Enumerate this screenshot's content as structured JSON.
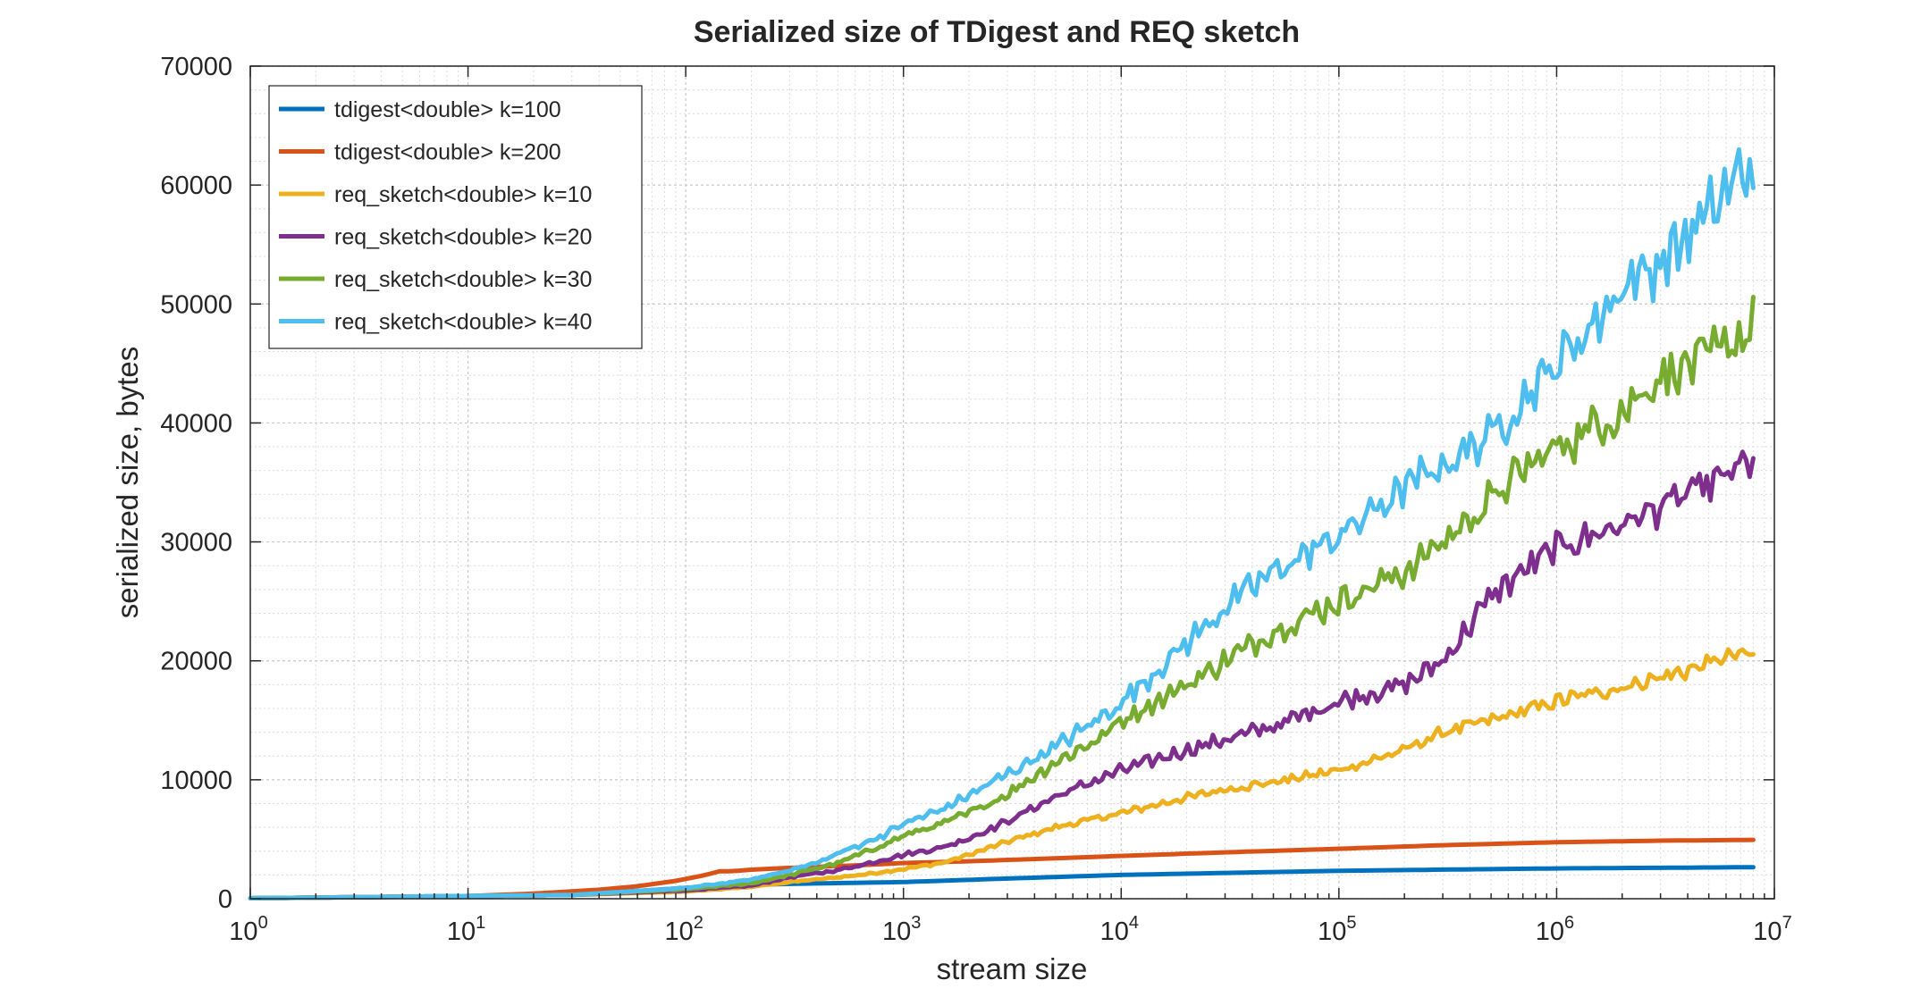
{
  "chart_data": {
    "type": "line",
    "title": "Serialized size of TDigest and REQ sketch",
    "xlabel": "stream size",
    "ylabel": "serialized size, bytes",
    "xscale": "log",
    "xlim": [
      1,
      10000000
    ],
    "ylim": [
      0,
      70000
    ],
    "grid": true,
    "legend_position": "top-left",
    "x_ticks": [
      {
        "value": 1,
        "base": "10",
        "exp": "0"
      },
      {
        "value": 10,
        "base": "10",
        "exp": "1"
      },
      {
        "value": 100,
        "base": "10",
        "exp": "2"
      },
      {
        "value": 1000,
        "base": "10",
        "exp": "3"
      },
      {
        "value": 10000,
        "base": "10",
        "exp": "4"
      },
      {
        "value": 100000,
        "base": "10",
        "exp": "5"
      },
      {
        "value": 1000000,
        "base": "10",
        "exp": "6"
      },
      {
        "value": 10000000,
        "base": "10",
        "exp": "7"
      }
    ],
    "y_ticks": [
      {
        "value": 0,
        "label": "0"
      },
      {
        "value": 10000,
        "label": "10000"
      },
      {
        "value": 20000,
        "label": "20000"
      },
      {
        "value": 30000,
        "label": "30000"
      },
      {
        "value": 40000,
        "label": "40000"
      },
      {
        "value": 50000,
        "label": "50000"
      },
      {
        "value": 60000,
        "label": "60000"
      },
      {
        "value": 70000,
        "label": "70000"
      }
    ],
    "series": [
      {
        "name": "tdigest<double> k=100",
        "color": "#0072bd",
        "points": [
          [
            1,
            40
          ],
          [
            10,
            200
          ],
          [
            30,
            420
          ],
          [
            60,
            650
          ],
          [
            100,
            920
          ],
          [
            150,
            1100
          ],
          [
            300,
            1250
          ],
          [
            1000,
            1400
          ],
          [
            3000,
            1700
          ],
          [
            10000,
            2000
          ],
          [
            100000,
            2350
          ],
          [
            1000000,
            2550
          ],
          [
            8000000,
            2650
          ]
        ]
      },
      {
        "name": "tdigest<double> k=200",
        "color": "#d95319",
        "points": [
          [
            1,
            40
          ],
          [
            10,
            220
          ],
          [
            20,
            430
          ],
          [
            40,
            760
          ],
          [
            60,
            1050
          ],
          [
            90,
            1500
          ],
          [
            120,
            1950
          ],
          [
            150,
            2400
          ],
          [
            160,
            2300
          ],
          [
            200,
            2450
          ],
          [
            300,
            2600
          ],
          [
            600,
            2800
          ],
          [
            1000,
            3000
          ],
          [
            2000,
            3150
          ],
          [
            5000,
            3400
          ],
          [
            10000,
            3600
          ],
          [
            30000,
            3900
          ],
          [
            100000,
            4200
          ],
          [
            300000,
            4500
          ],
          [
            1000000,
            4750
          ],
          [
            3000000,
            4880
          ],
          [
            8000000,
            4950
          ]
        ]
      },
      {
        "name": "req_sketch<double> k=10",
        "color": "#edb120",
        "wiggle": 0.05,
        "points": [
          [
            1,
            40
          ],
          [
            30,
            320
          ],
          [
            100,
            600
          ],
          [
            200,
            1000
          ],
          [
            300,
            1400
          ],
          [
            500,
            1800
          ],
          [
            700,
            2100
          ],
          [
            1000,
            2500
          ],
          [
            1500,
            3000
          ],
          [
            2000,
            3700
          ],
          [
            3000,
            4800
          ],
          [
            5000,
            6000
          ],
          [
            10000,
            7200
          ],
          [
            20000,
            8500
          ],
          [
            30000,
            9200
          ],
          [
            50000,
            9800
          ],
          [
            100000,
            10800
          ],
          [
            200000,
            12500
          ],
          [
            300000,
            14000
          ],
          [
            500000,
            15000
          ],
          [
            1000000,
            16600
          ],
          [
            2000000,
            17800
          ],
          [
            4000000,
            19200
          ],
          [
            6000000,
            20300
          ],
          [
            8000000,
            20600
          ]
        ]
      },
      {
        "name": "req_sketch<double> k=20",
        "color": "#7e2f8e",
        "wiggle": 0.06,
        "points": [
          [
            1,
            40
          ],
          [
            30,
            320
          ],
          [
            100,
            700
          ],
          [
            200,
            1100
          ],
          [
            300,
            1800
          ],
          [
            500,
            2400
          ],
          [
            700,
            3000
          ],
          [
            1000,
            3700
          ],
          [
            1500,
            4300
          ],
          [
            2000,
            5100
          ],
          [
            3000,
            6500
          ],
          [
            5000,
            8600
          ],
          [
            10000,
            10800
          ],
          [
            20000,
            12500
          ],
          [
            50000,
            14500
          ],
          [
            100000,
            16600
          ],
          [
            200000,
            18000
          ],
          [
            300000,
            20000
          ],
          [
            400000,
            23000
          ],
          [
            500000,
            25500
          ],
          [
            700000,
            27500
          ],
          [
            1000000,
            29500
          ],
          [
            2000000,
            31500
          ],
          [
            4000000,
            34000
          ],
          [
            6000000,
            35500
          ],
          [
            8000000,
            37000
          ]
        ]
      },
      {
        "name": "req_sketch<double> k=30",
        "color": "#77ac30",
        "wiggle": 0.065,
        "points": [
          [
            1,
            40
          ],
          [
            30,
            320
          ],
          [
            100,
            800
          ],
          [
            200,
            1300
          ],
          [
            300,
            2000
          ],
          [
            500,
            3000
          ],
          [
            800,
            4500
          ],
          [
            1000,
            5300
          ],
          [
            1500,
            6300
          ],
          [
            2000,
            7200
          ],
          [
            3000,
            8800
          ],
          [
            5000,
            11500
          ],
          [
            8000,
            13500
          ],
          [
            10000,
            15000
          ],
          [
            20000,
            18000
          ],
          [
            30000,
            20000
          ],
          [
            50000,
            22500
          ],
          [
            100000,
            25000
          ],
          [
            200000,
            27500
          ],
          [
            300000,
            30000
          ],
          [
            500000,
            33500
          ],
          [
            700000,
            36000
          ],
          [
            1000000,
            38000
          ],
          [
            2000000,
            41000
          ],
          [
            3000000,
            44000
          ],
          [
            5000000,
            45500
          ],
          [
            8000000,
            48000
          ]
        ]
      },
      {
        "name": "req_sketch<double> k=40",
        "color": "#4dbeee",
        "wiggle": 0.065,
        "points": [
          [
            1,
            40
          ],
          [
            30,
            320
          ],
          [
            100,
            900
          ],
          [
            200,
            1600
          ],
          [
            400,
            3000
          ],
          [
            500,
            3800
          ],
          [
            800,
            5300
          ],
          [
            1000,
            6300
          ],
          [
            1500,
            7500
          ],
          [
            2000,
            8700
          ],
          [
            3000,
            10500
          ],
          [
            5000,
            12800
          ],
          [
            8000,
            15200
          ],
          [
            10000,
            16500
          ],
          [
            20000,
            21500
          ],
          [
            30000,
            24500
          ],
          [
            50000,
            27500
          ],
          [
            100000,
            30500
          ],
          [
            200000,
            34500
          ],
          [
            300000,
            36500
          ],
          [
            500000,
            39000
          ],
          [
            700000,
            42000
          ],
          [
            1000000,
            45000
          ],
          [
            1500000,
            48500
          ],
          [
            2000000,
            51500
          ],
          [
            3000000,
            53500
          ],
          [
            5000000,
            57500
          ],
          [
            7000000,
            61000
          ],
          [
            8000000,
            61500
          ]
        ]
      }
    ]
  }
}
